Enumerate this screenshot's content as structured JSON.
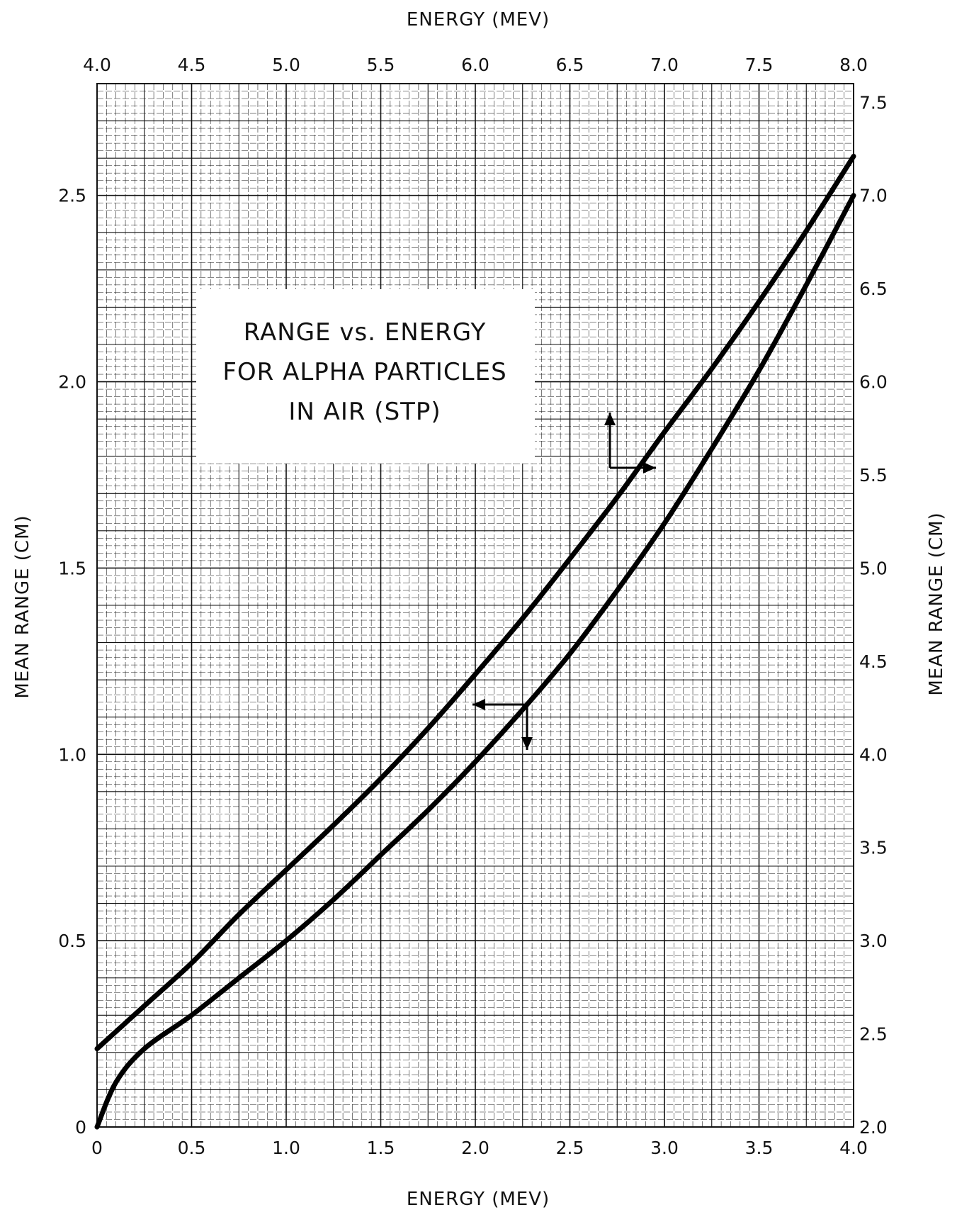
{
  "chart_data": {
    "type": "line",
    "title_lines": [
      "RANGE vs. ENERGY",
      "FOR ALPHA PARTICLES",
      "IN AIR (STP)"
    ],
    "xlabel_top": "ENERGY (MEV)",
    "xlabel_bottom": "ENERGY (MEV)",
    "ylabel_left": "MEAN RANGE (CM)",
    "ylabel_right": "MEAN RANGE (CM)",
    "x_bottom": {
      "range": [
        0,
        4.0
      ],
      "ticks": [
        "0",
        "0.5",
        "1.0",
        "1.5",
        "2.0",
        "2.5",
        "3.0",
        "3.5",
        "4.0"
      ]
    },
    "x_top": {
      "range": [
        4.0,
        8.0
      ],
      "ticks": [
        "4.0",
        "4.5",
        "5.0",
        "5.5",
        "6.0",
        "6.5",
        "7.0",
        "7.5",
        "8.0"
      ]
    },
    "y_left": {
      "range": [
        0,
        2.8
      ],
      "ticks": [
        "0",
        "0.5",
        "1.0",
        "1.5",
        "2.0",
        "2.5"
      ]
    },
    "y_right": {
      "range": [
        2.0,
        7.6
      ],
      "ticks": [
        "2.0",
        "2.5",
        "3.0",
        "3.5",
        "4.0",
        "4.5",
        "5.0",
        "5.5",
        "6.0",
        "6.5",
        "7.0",
        "7.5"
      ]
    },
    "grid": true,
    "series": [
      {
        "axes": "top-right",
        "x": [
          4.0,
          4.25,
          4.5,
          4.75,
          5.0,
          5.25,
          5.5,
          5.75,
          6.0,
          6.25,
          6.5,
          6.75,
          7.0,
          7.25,
          7.5,
          7.75,
          8.0
        ],
        "y": [
          2.42,
          2.65,
          2.88,
          3.14,
          3.38,
          3.62,
          3.87,
          4.14,
          4.43,
          4.73,
          5.05,
          5.38,
          5.73,
          6.07,
          6.43,
          6.81,
          7.21
        ]
      },
      {
        "axes": "bottom-left",
        "x": [
          0,
          0.1,
          0.25,
          0.5,
          0.75,
          1.0,
          1.25,
          1.5,
          1.75,
          2.0,
          2.25,
          2.5,
          2.75,
          3.0,
          3.25,
          3.5,
          3.75,
          4.0
        ],
        "y": [
          0,
          0.12,
          0.21,
          0.3,
          0.4,
          0.5,
          0.61,
          0.73,
          0.85,
          0.98,
          1.12,
          1.27,
          1.44,
          1.62,
          1.82,
          2.03,
          2.26,
          2.5
        ]
      }
    ]
  }
}
